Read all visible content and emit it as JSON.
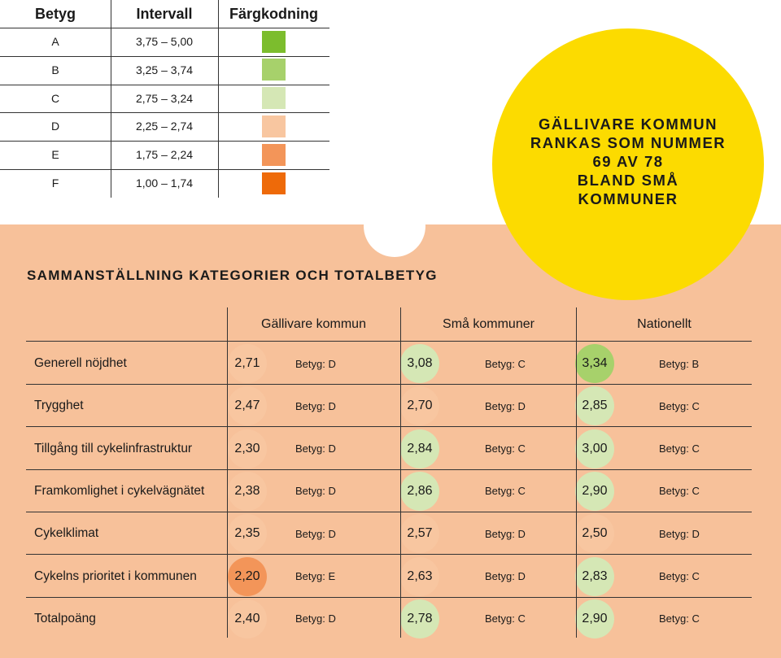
{
  "legend": {
    "headers": [
      "Betyg",
      "Intervall",
      "Färgkodning"
    ],
    "rows": [
      {
        "grade": "A",
        "interval": "3,75 – 5,00",
        "color": "#7cbd2d"
      },
      {
        "grade": "B",
        "interval": "3,25 – 3,74",
        "color": "#a7d16b"
      },
      {
        "grade": "C",
        "interval": "2,75 – 3,24",
        "color": "#d5e7b5"
      },
      {
        "grade": "D",
        "interval": "2,25 – 2,74",
        "color": "#f8c6a0"
      },
      {
        "grade": "E",
        "interval": "1,75 – 2,24",
        "color": "#f39559"
      },
      {
        "grade": "F",
        "interval": "1,00 – 1,74",
        "color": "#ee6a09"
      }
    ]
  },
  "badge": {
    "text": "GÄLLIVARE KOMMUN\nRANKAS SOM NUMMER\n69 AV 78\nBLAND SMÅ\nKOMMUNER"
  },
  "summary": {
    "title": "SAMMANSTÄLLNING KATEGORIER OCH TOTALBETYG",
    "columns": [
      "Gällivare kommun",
      "Små kommuner",
      "Nationellt"
    ],
    "rows": [
      {
        "category": "Generell nöjdhet",
        "cells": [
          {
            "value": "2,71",
            "grade": "Betyg: D",
            "color": "#f8c6a0"
          },
          {
            "value": "3,08",
            "grade": "Betyg: C",
            "color": "#d5e7b5"
          },
          {
            "value": "3,34",
            "grade": "Betyg: B",
            "color": "#a7d16b"
          }
        ]
      },
      {
        "category": "Trygghet",
        "cells": [
          {
            "value": "2,47",
            "grade": "Betyg: D",
            "color": "#f8c6a0"
          },
          {
            "value": "2,70",
            "grade": "Betyg: D",
            "color": "#f8c6a0"
          },
          {
            "value": "2,85",
            "grade": "Betyg: C",
            "color": "#d5e7b5"
          }
        ]
      },
      {
        "category": "Tillgång till cykelinfrastruktur",
        "cells": [
          {
            "value": "2,30",
            "grade": "Betyg: D",
            "color": "#f8c6a0"
          },
          {
            "value": "2,84",
            "grade": "Betyg: C",
            "color": "#d5e7b5"
          },
          {
            "value": "3,00",
            "grade": "Betyg: C",
            "color": "#d5e7b5"
          }
        ]
      },
      {
        "category": "Framkomlighet i cykelvägnätet",
        "cells": [
          {
            "value": "2,38",
            "grade": "Betyg: D",
            "color": "#f8c6a0"
          },
          {
            "value": "2,86",
            "grade": "Betyg: C",
            "color": "#d5e7b5"
          },
          {
            "value": "2,90",
            "grade": "Betyg: C",
            "color": "#d5e7b5"
          }
        ]
      },
      {
        "category": "Cykelklimat",
        "cells": [
          {
            "value": "2,35",
            "grade": "Betyg: D",
            "color": "#f8c6a0"
          },
          {
            "value": "2,57",
            "grade": "Betyg: D",
            "color": "#f8c6a0"
          },
          {
            "value": "2,50",
            "grade": "Betyg: D",
            "color": "#f8c6a0"
          }
        ]
      },
      {
        "category": "Cykelns prioritet i kommunen",
        "cells": [
          {
            "value": "2,20",
            "grade": "Betyg: E",
            "color": "#f39559"
          },
          {
            "value": "2,63",
            "grade": "Betyg: D",
            "color": "#f8c6a0"
          },
          {
            "value": "2,83",
            "grade": "Betyg: C",
            "color": "#d5e7b5"
          }
        ]
      },
      {
        "category": "Totalpoäng",
        "cells": [
          {
            "value": "2,40",
            "grade": "Betyg: D",
            "color": "#f8c6a0"
          },
          {
            "value": "2,78",
            "grade": "Betyg: C",
            "color": "#d5e7b5"
          },
          {
            "value": "2,90",
            "grade": "Betyg: C",
            "color": "#d5e7b5"
          }
        ]
      }
    ]
  }
}
